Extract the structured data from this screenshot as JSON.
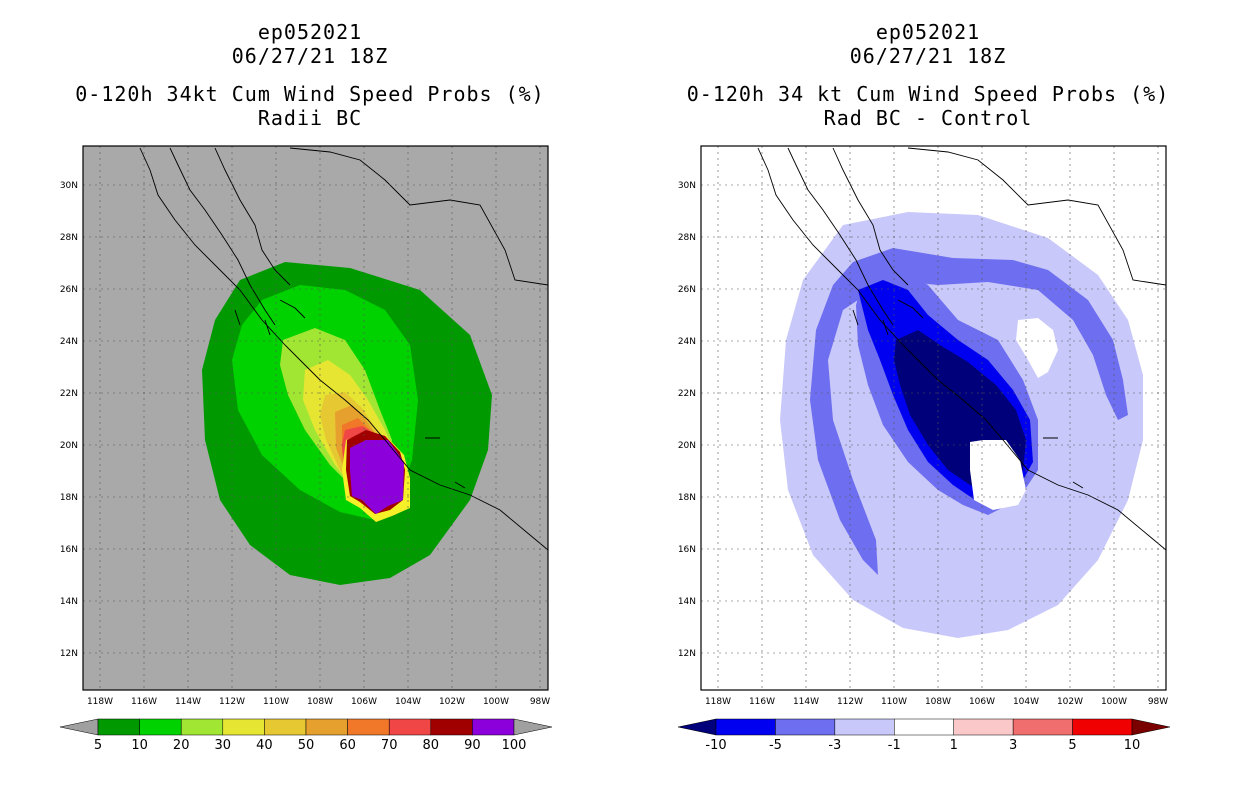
{
  "left": {
    "title_lines": [
      "ep052021",
      "06/27/21 18Z",
      "",
      "0-120h 34kt Cum Wind Speed Probs (%)",
      "Radii BC"
    ],
    "background": "#a9a9a9",
    "colorbar": {
      "labels": [
        "5",
        "10",
        "20",
        "30",
        "40",
        "50",
        "60",
        "70",
        "80",
        "90",
        "100"
      ],
      "colors": [
        "#a0a0a0",
        "#009a00",
        "#00d200",
        "#a0e632",
        "#e6e632",
        "#e6c832",
        "#e6a02d",
        "#f07828",
        "#f04646",
        "#a00000",
        "#8c00dc",
        "#a0a0a0"
      ]
    }
  },
  "right": {
    "title_lines": [
      "ep052021",
      "06/27/21 18Z",
      "",
      "0-120h 34 kt Cum Wind Speed Probs (%)",
      "Rad BC - Control"
    ],
    "background": "#ffffff",
    "colorbar": {
      "labels": [
        "-10",
        "-5",
        "-3",
        "-1",
        "1",
        "3",
        "5",
        "10"
      ],
      "colors": [
        "#00007a",
        "#0000f0",
        "#6e6ef0",
        "#c8c8fa",
        "#ffffff",
        "#fac8c8",
        "#f06e6e",
        "#f00000",
        "#7a0000"
      ]
    }
  },
  "axes": {
    "x_ticks": [
      "118W",
      "116W",
      "114W",
      "112W",
      "110W",
      "108W",
      "106W",
      "104W",
      "102W",
      "100W",
      "98W"
    ],
    "y_ticks": [
      "30N",
      "28N",
      "26N",
      "24N",
      "22N",
      "20N",
      "18N",
      "16N",
      "14N",
      "12N"
    ]
  },
  "chart_data": [
    {
      "type": "heatmap",
      "title": "0-120h 34kt Cum Wind Speed Probs (%) - Radii BC",
      "storm": "ep052021",
      "time": "06/27/21 18Z",
      "x_range_lon": [
        -119,
        -98
      ],
      "y_range_lat": [
        10.5,
        31.5
      ],
      "contour_levels": [
        5,
        10,
        20,
        30,
        40,
        50,
        60,
        70,
        80,
        90,
        100
      ],
      "grid": true,
      "legend": "bottom"
    },
    {
      "type": "heatmap",
      "title": "0-120h 34 kt Cum Wind Speed Probs (%) - Rad BC - Control",
      "storm": "ep052021",
      "time": "06/27/21 18Z",
      "x_range_lon": [
        -119,
        -98
      ],
      "y_range_lat": [
        10.5,
        31.5
      ],
      "contour_levels": [
        -10,
        -5,
        -3,
        -1,
        1,
        3,
        5,
        10
      ],
      "grid": true,
      "legend": "bottom"
    }
  ]
}
